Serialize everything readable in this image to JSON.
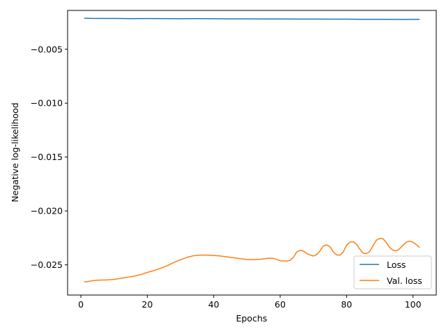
{
  "chart_data": {
    "type": "line",
    "xlabel": "Epochs",
    "ylabel": "Negative log-likelihood",
    "xlim": [
      -4,
      107
    ],
    "ylim": [
      -0.0278,
      -0.0014
    ],
    "xticks": [
      0,
      20,
      40,
      60,
      80,
      100
    ],
    "xtick_labels": [
      "0",
      "20",
      "40",
      "60",
      "80",
      "100"
    ],
    "yticks": [
      -0.005,
      -0.01,
      -0.015,
      -0.02,
      -0.025
    ],
    "ytick_labels": [
      "−0.005",
      "−0.010",
      "−0.015",
      "−0.020",
      "−0.025"
    ],
    "grid": false,
    "legend_position": "lower-right",
    "series": [
      {
        "name": "Loss",
        "color": "#1f77b4",
        "x": [
          1,
          5,
          10,
          15,
          20,
          25,
          30,
          35,
          40,
          45,
          50,
          55,
          60,
          65,
          70,
          75,
          80,
          85,
          90,
          95,
          100,
          102
        ],
        "y": [
          -0.00213,
          -0.00214,
          -0.00214,
          -0.00216,
          -0.00215,
          -0.00216,
          -0.00217,
          -0.00216,
          -0.00217,
          -0.00218,
          -0.00218,
          -0.00219,
          -0.00219,
          -0.0022,
          -0.0022,
          -0.00221,
          -0.00221,
          -0.00222,
          -0.00222,
          -0.00223,
          -0.00223,
          -0.00222
        ]
      },
      {
        "name": "Val. loss",
        "color": "#ff7f0e",
        "x": [
          1,
          2,
          3,
          4,
          5,
          6,
          8,
          10,
          12,
          14,
          16,
          18,
          20,
          22,
          24,
          26,
          28,
          30,
          32,
          34,
          36,
          38,
          40,
          42,
          44,
          46,
          48,
          50,
          52,
          54,
          56,
          57,
          58,
          60,
          62,
          63,
          64,
          65,
          66,
          67,
          68,
          69,
          70,
          71,
          72,
          73,
          74,
          75,
          76,
          77,
          78,
          79,
          80,
          81,
          82,
          83,
          84,
          85,
          86,
          87,
          88,
          89,
          90,
          91,
          92,
          93,
          94,
          95,
          96,
          97,
          98,
          99,
          100,
          101,
          102
        ],
        "y": [
          -0.02658,
          -0.02656,
          -0.0265,
          -0.02645,
          -0.02642,
          -0.02641,
          -0.0264,
          -0.02635,
          -0.02625,
          -0.02615,
          -0.02605,
          -0.0259,
          -0.0257,
          -0.02553,
          -0.02532,
          -0.02508,
          -0.02478,
          -0.02452,
          -0.0243,
          -0.02415,
          -0.0241,
          -0.0241,
          -0.02413,
          -0.02418,
          -0.02426,
          -0.02434,
          -0.02443,
          -0.0245,
          -0.02452,
          -0.02448,
          -0.0244,
          -0.02438,
          -0.0244,
          -0.02462,
          -0.02465,
          -0.02458,
          -0.0243,
          -0.0238,
          -0.02365,
          -0.02372,
          -0.02395,
          -0.02408,
          -0.02418,
          -0.02405,
          -0.0237,
          -0.02325,
          -0.02315,
          -0.0233,
          -0.0238,
          -0.02408,
          -0.0241,
          -0.0238,
          -0.02318,
          -0.0229,
          -0.02285,
          -0.0231,
          -0.02355,
          -0.02392,
          -0.02395,
          -0.02375,
          -0.0232,
          -0.0227,
          -0.02255,
          -0.02258,
          -0.02295,
          -0.0234,
          -0.02365,
          -0.0237,
          -0.0235,
          -0.02318,
          -0.0229,
          -0.0228,
          -0.0229,
          -0.02312,
          -0.0234
        ]
      }
    ]
  }
}
